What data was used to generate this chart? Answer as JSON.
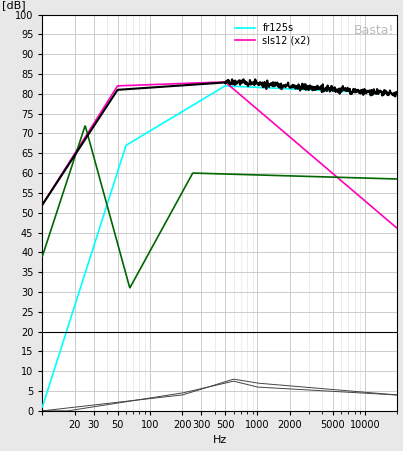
{
  "title": "",
  "ylabel": "[dB]",
  "xlabel": "Hz",
  "xlim": [
    10,
    20000
  ],
  "ylim": [
    0,
    100
  ],
  "bg_color": "#e8e8e8",
  "plot_bg": "#ffffff",
  "grid_major_color": "#cccccc",
  "grid_minor_color": "#dddddd",
  "legend_labels": [
    "fr125s",
    "sls12 (x2)"
  ],
  "legend_colors": [
    "#00ffff",
    "#ff00bb"
  ],
  "watermark": "Basta!",
  "cyan_color": "#00ffff",
  "magenta_color": "#ff00bb",
  "green_color": "#006600",
  "black_color": "#000000",
  "dist_color": "#444444",
  "line_lw": 1.2,
  "black_lw": 1.5,
  "dist_lw": 0.7
}
